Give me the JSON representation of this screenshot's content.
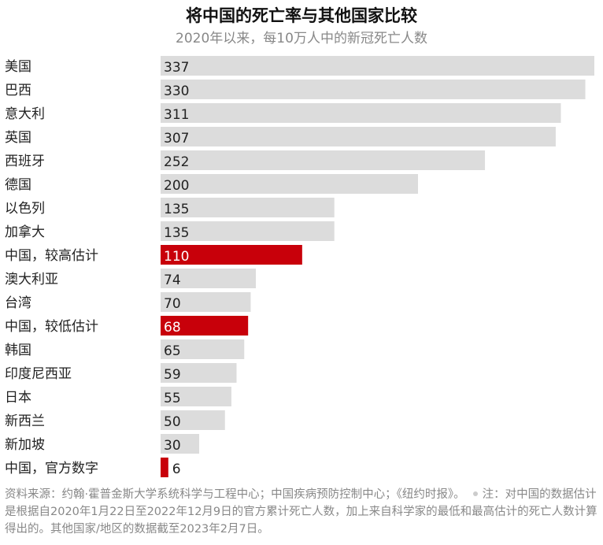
{
  "chart_data": {
    "type": "bar",
    "orientation": "horizontal",
    "title": "将中国的死亡率与其他国家比较",
    "subtitle": "2020年以来，每10万人中的新冠死亡人数",
    "categories": [
      "美国",
      "巴西",
      "意大利",
      "英国",
      "西班牙",
      "德国",
      "以色列",
      "加拿大",
      "中国，较高估计",
      "澳大利亚",
      "台湾",
      "中国，较低估计",
      "韩国",
      "印度尼西亚",
      "日本",
      "新西兰",
      "新加坡",
      "中国，官方数字"
    ],
    "values": [
      337,
      330,
      311,
      307,
      252,
      200,
      135,
      135,
      110,
      74,
      70,
      68,
      65,
      59,
      55,
      50,
      30,
      6
    ],
    "highlight": [
      "中国，较高估计",
      "中国，较低估计",
      "中国，官方数字"
    ],
    "xlim": [
      0,
      337
    ],
    "grid": false,
    "colors": {
      "bar": "#dcdcdc",
      "highlight": "#c8000a",
      "label_on_gray": "#222222",
      "label_on_red": "#ffffff"
    }
  },
  "footnote": {
    "sources": "资料来源：约翰·霍普金斯大学系统科学与工程中心；中国疾病预防控制中心；《纽约时报》。",
    "note": "注：对中国的数据估计是根据自2020年1月22日至2022年12月9日的官方累计死亡人数，加上来自科学家的最低和最高估计的死亡人数计算得出的。其他国家/地区的数据截至2023年2月7日。"
  }
}
